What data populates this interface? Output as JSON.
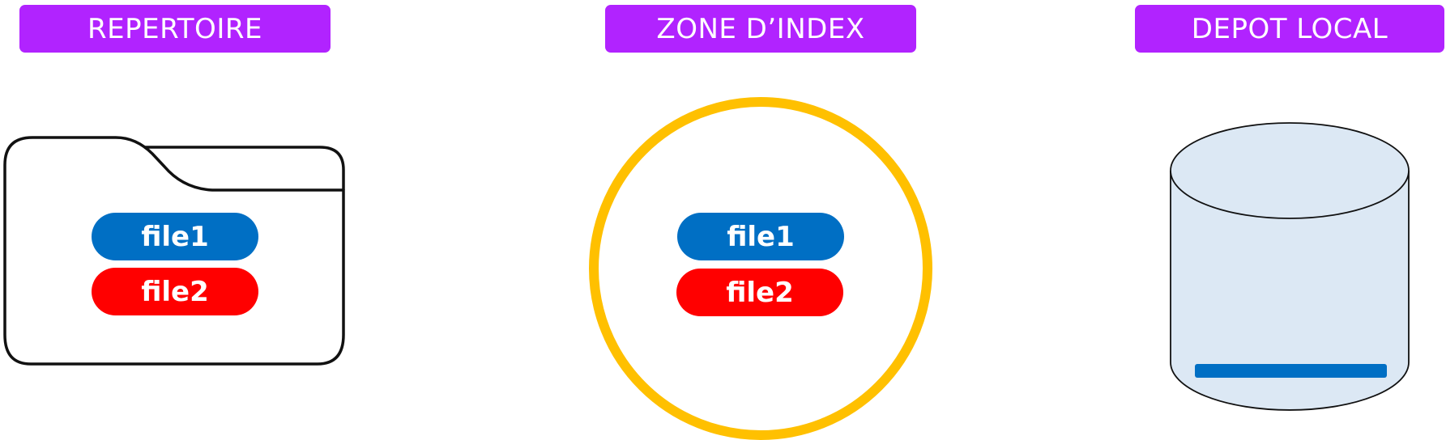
{
  "colors": {
    "header_bg": "#b123ff",
    "file1_bg": "#006fc4",
    "file2_bg": "#ff0000",
    "folder_stroke": "#111111",
    "index_circle": "#ffc000",
    "repo_fill": "#dce8f4",
    "repo_stroke": "#111111",
    "repo_bar": "#006fc4"
  },
  "columns": [
    {
      "header": "REPERTOIRE",
      "container": "folder-icon",
      "files": [
        "file1",
        "file2"
      ]
    },
    {
      "header": "ZONE D’INDEX",
      "container": "circle",
      "files": [
        "file1",
        "file2"
      ]
    },
    {
      "header": "DEPOT LOCAL",
      "container": "database-icon",
      "files": []
    }
  ]
}
